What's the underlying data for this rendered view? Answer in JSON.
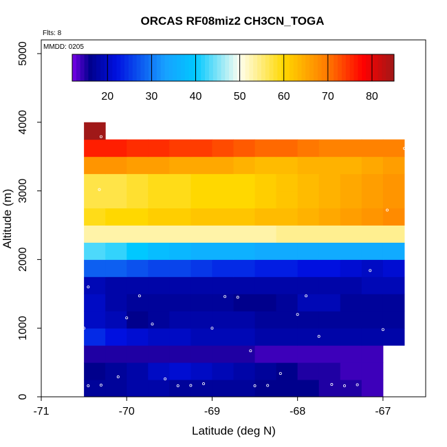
{
  "chart_data": {
    "type": "heatmap",
    "title": "ORCAS RF08miz2 CH3CN_TOGA",
    "annotations": [
      "Flts: 8",
      "MMDD: 0205"
    ],
    "xlabel": "Latitude (deg N)",
    "ylabel": "Altitude (m)",
    "xlim": [
      -71,
      -66.5
    ],
    "ylim": [
      0,
      5200
    ],
    "xticks": [
      -71,
      -70,
      -69,
      -68,
      -67
    ],
    "yticks": [
      0,
      1000,
      2000,
      3000,
      4000,
      5000
    ],
    "colorbar": {
      "range": [
        12,
        85
      ],
      "ticks": [
        20,
        30,
        40,
        50,
        60,
        70,
        80
      ]
    },
    "lat_edges": [
      -70.5,
      -70.25,
      -70.0,
      -69.75,
      -69.5,
      -69.25,
      -69.0,
      -68.75,
      -68.5,
      -68.25,
      -68.0,
      -67.75,
      -67.5,
      -67.25,
      -67.0,
      -66.75
    ],
    "rows": [
      {
        "alt": [
          0,
          250
        ],
        "values": [
          17,
          17,
          18,
          18,
          17,
          17,
          17,
          17,
          16,
          16,
          16,
          15,
          15,
          14
        ]
      },
      {
        "alt": [
          250,
          500
        ],
        "values": [
          16,
          17,
          18,
          20,
          21,
          20,
          19,
          18,
          17,
          16,
          15,
          15,
          14,
          14
        ]
      },
      {
        "alt": [
          500,
          750
        ],
        "values": [
          15,
          15,
          15,
          15,
          15,
          15,
          15,
          15,
          14,
          14,
          14,
          14,
          14,
          14
        ]
      },
      {
        "alt": [
          750,
          1000
        ],
        "values": [
          24,
          22,
          21,
          20,
          20,
          19,
          19,
          19,
          18,
          18,
          18,
          18,
          18,
          18,
          18
        ]
      },
      {
        "alt": [
          1000,
          1250
        ],
        "values": [
          20,
          19,
          16,
          17,
          18,
          18,
          18,
          18,
          17,
          17,
          17,
          17,
          17,
          17,
          17
        ]
      },
      {
        "alt": [
          1250,
          1500
        ],
        "values": [
          20,
          18,
          17,
          17,
          17,
          17,
          17,
          16,
          16,
          17,
          19,
          19,
          17,
          17,
          17
        ]
      },
      {
        "alt": [
          1500,
          1750
        ],
        "values": [
          19,
          18,
          18,
          18,
          18,
          18,
          18,
          18,
          18,
          18,
          18,
          18,
          18,
          19,
          19
        ]
      },
      {
        "alt": [
          1750,
          2000
        ],
        "values": [
          28,
          28,
          27,
          26,
          26,
          25,
          24,
          24,
          23,
          23,
          22,
          22,
          21,
          20,
          21
        ]
      },
      {
        "alt": [
          2000,
          2250
        ],
        "values": [
          43,
          42,
          40,
          38,
          37,
          36,
          36,
          36,
          35,
          35,
          35,
          35,
          35,
          35,
          35
        ]
      },
      {
        "alt": [
          2250,
          2500
        ],
        "values": [
          53,
          53,
          53,
          53,
          53,
          53,
          53,
          53,
          53,
          54,
          54,
          54,
          54,
          54,
          54
        ]
      },
      {
        "alt": [
          2500,
          2750
        ],
        "values": [
          59,
          60,
          60,
          61,
          61,
          62,
          62,
          62,
          63,
          63,
          64,
          65,
          66,
          67,
          68,
          68
        ]
      },
      {
        "alt": [
          2750,
          3000
        ],
        "values": [
          57,
          57,
          58,
          59,
          59,
          60,
          60,
          60,
          61,
          62,
          63,
          64,
          65,
          66,
          67,
          68
        ]
      },
      {
        "alt": [
          3000,
          3250
        ],
        "values": [
          57,
          57,
          58,
          59,
          59,
          60,
          60,
          60,
          61,
          62,
          63,
          64,
          65,
          66,
          67,
          68
        ]
      },
      {
        "alt": [
          3250,
          3500
        ],
        "values": [
          67,
          67,
          66,
          66,
          65,
          65,
          65,
          64,
          63,
          63,
          64,
          64,
          64,
          65,
          66,
          67
        ]
      },
      {
        "alt": [
          3500,
          3750
        ],
        "values": [
          76,
          76,
          75,
          75,
          74,
          74,
          73,
          72,
          71,
          71,
          70,
          69,
          69,
          69,
          69,
          68
        ]
      },
      {
        "alt": [
          3750,
          4000
        ],
        "values": [
          85
        ]
      }
    ],
    "points": [
      [
        -70.45,
        160
      ],
      [
        -70.3,
        170
      ],
      [
        -70.1,
        290
      ],
      [
        -69.55,
        260
      ],
      [
        -69.4,
        160
      ],
      [
        -69.25,
        165
      ],
      [
        -69.1,
        190
      ],
      [
        -68.5,
        160
      ],
      [
        -68.35,
        165
      ],
      [
        -68.2,
        340
      ],
      [
        -67.6,
        180
      ],
      [
        -67.45,
        160
      ],
      [
        -67.3,
        175
      ],
      [
        -70.55,
        440
      ],
      [
        -68.55,
        670
      ],
      [
        -70.5,
        1000
      ],
      [
        -70.0,
        1150
      ],
      [
        -69.7,
        1060
      ],
      [
        -69.0,
        1000
      ],
      [
        -68.0,
        1200
      ],
      [
        -67.75,
        880
      ],
      [
        -67.0,
        980
      ],
      [
        -70.45,
        1600
      ],
      [
        -69.85,
        1470
      ],
      [
        -68.85,
        1460
      ],
      [
        -68.7,
        1450
      ],
      [
        -67.9,
        1470
      ],
      [
        -67.15,
        1840
      ],
      [
        -70.32,
        3020
      ],
      [
        -66.95,
        2720
      ],
      [
        -66.75,
        3620
      ],
      [
        -70.3,
        3790
      ]
    ]
  }
}
